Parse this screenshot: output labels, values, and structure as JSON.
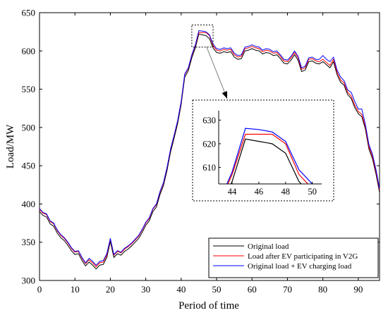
{
  "chart_data": {
    "type": "line",
    "title": "",
    "xlabel": "Period of time",
    "ylabel": "Load/MW",
    "xlim": [
      0,
      96
    ],
    "ylim": [
      300,
      650
    ],
    "xticks": [
      0,
      10,
      20,
      30,
      40,
      50,
      60,
      70,
      80,
      90
    ],
    "yticks": [
      300,
      350,
      400,
      450,
      500,
      550,
      600,
      650
    ],
    "legend": "bottom-right",
    "grid": false,
    "series": [
      {
        "name": "Original load",
        "color": "#000000",
        "values": [
          [
            0,
            390
          ],
          [
            1,
            385
          ],
          [
            2,
            383
          ],
          [
            3,
            374
          ],
          [
            4,
            371
          ],
          [
            5,
            362
          ],
          [
            6,
            356
          ],
          [
            7,
            352
          ],
          [
            8,
            346
          ],
          [
            9,
            339
          ],
          [
            10,
            334
          ],
          [
            11,
            335
          ],
          [
            12,
            326
          ],
          [
            13,
            319
          ],
          [
            14,
            324
          ],
          [
            15,
            320
          ],
          [
            16,
            315
          ],
          [
            17,
            320
          ],
          [
            18,
            321
          ],
          [
            19,
            330
          ],
          [
            20,
            351
          ],
          [
            21,
            330
          ],
          [
            22,
            335
          ],
          [
            23,
            333
          ],
          [
            24,
            338
          ],
          [
            25,
            341
          ],
          [
            26,
            345
          ],
          [
            27,
            350
          ],
          [
            28,
            355
          ],
          [
            29,
            363
          ],
          [
            30,
            372
          ],
          [
            31,
            378
          ],
          [
            32,
            390
          ],
          [
            33,
            396
          ],
          [
            34,
            412
          ],
          [
            35,
            424
          ],
          [
            36,
            444
          ],
          [
            37,
            468
          ],
          [
            38,
            486
          ],
          [
            39,
            505
          ],
          [
            40,
            530
          ],
          [
            41,
            566
          ],
          [
            42,
            574
          ],
          [
            43,
            591
          ],
          [
            44,
            604
          ],
          [
            45,
            622
          ],
          [
            46,
            621
          ],
          [
            47,
            620
          ],
          [
            48,
            616
          ],
          [
            49,
            604
          ],
          [
            50,
            598
          ],
          [
            51,
            597
          ],
          [
            52,
            599
          ],
          [
            53,
            598
          ],
          [
            54,
            599
          ],
          [
            55,
            592
          ],
          [
            56,
            589
          ],
          [
            57,
            590
          ],
          [
            58,
            600
          ],
          [
            59,
            601
          ],
          [
            60,
            603
          ],
          [
            61,
            601
          ],
          [
            62,
            600
          ],
          [
            63,
            596
          ],
          [
            64,
            598
          ],
          [
            65,
            597
          ],
          [
            66,
            594
          ],
          [
            67,
            595
          ],
          [
            68,
            590
          ],
          [
            69,
            584
          ],
          [
            70,
            583
          ],
          [
            71,
            588
          ],
          [
            72,
            595
          ],
          [
            73,
            588
          ],
          [
            74,
            573
          ],
          [
            75,
            575
          ],
          [
            76,
            586
          ],
          [
            77,
            587
          ],
          [
            78,
            584
          ],
          [
            79,
            583
          ],
          [
            80,
            586
          ],
          [
            81,
            582
          ],
          [
            82,
            578
          ],
          [
            83,
            586
          ],
          [
            84,
            569
          ],
          [
            85,
            559
          ],
          [
            86,
            555
          ],
          [
            87,
            543
          ],
          [
            88,
            538
          ],
          [
            89,
            526
          ],
          [
            90,
            518
          ],
          [
            91,
            514
          ],
          [
            92,
            498
          ],
          [
            93,
            472
          ],
          [
            94,
            459
          ],
          [
            95,
            439
          ],
          [
            96,
            415
          ]
        ]
      },
      {
        "name": "Load after EV participating in V2G",
        "color": "#ff0000",
        "values": [
          [
            0,
            393
          ],
          [
            1,
            388
          ],
          [
            2,
            386
          ],
          [
            3,
            377
          ],
          [
            4,
            374
          ],
          [
            5,
            365
          ],
          [
            6,
            359
          ],
          [
            7,
            355
          ],
          [
            8,
            349
          ],
          [
            9,
            342
          ],
          [
            10,
            337
          ],
          [
            11,
            338
          ],
          [
            12,
            329
          ],
          [
            13,
            322
          ],
          [
            14,
            327
          ],
          [
            15,
            323
          ],
          [
            16,
            318
          ],
          [
            17,
            323
          ],
          [
            18,
            324
          ],
          [
            19,
            333
          ],
          [
            20,
            354
          ],
          [
            21,
            333
          ],
          [
            22,
            338
          ],
          [
            23,
            336
          ],
          [
            24,
            341
          ],
          [
            25,
            344
          ],
          [
            26,
            348
          ],
          [
            27,
            353
          ],
          [
            28,
            358
          ],
          [
            29,
            366
          ],
          [
            30,
            375
          ],
          [
            31,
            381
          ],
          [
            32,
            393
          ],
          [
            33,
            399
          ],
          [
            34,
            415
          ],
          [
            35,
            427
          ],
          [
            36,
            447
          ],
          [
            37,
            471
          ],
          [
            38,
            489
          ],
          [
            39,
            508
          ],
          [
            40,
            533
          ],
          [
            41,
            569
          ],
          [
            42,
            577
          ],
          [
            43,
            594
          ],
          [
            44,
            607
          ],
          [
            45,
            624
          ],
          [
            46,
            624
          ],
          [
            47,
            624
          ],
          [
            48,
            620
          ],
          [
            49,
            607
          ],
          [
            50,
            601
          ],
          [
            51,
            600
          ],
          [
            52,
            602
          ],
          [
            53,
            601
          ],
          [
            54,
            602
          ],
          [
            55,
            595
          ],
          [
            56,
            592
          ],
          [
            57,
            593
          ],
          [
            58,
            603
          ],
          [
            59,
            604
          ],
          [
            60,
            606
          ],
          [
            61,
            604
          ],
          [
            62,
            603
          ],
          [
            63,
            599
          ],
          [
            64,
            601
          ],
          [
            65,
            600
          ],
          [
            66,
            597
          ],
          [
            67,
            598
          ],
          [
            68,
            593
          ],
          [
            69,
            587
          ],
          [
            70,
            586
          ],
          [
            71,
            591
          ],
          [
            72,
            598
          ],
          [
            73,
            591
          ],
          [
            74,
            576
          ],
          [
            75,
            578
          ],
          [
            76,
            589
          ],
          [
            77,
            590
          ],
          [
            78,
            587
          ],
          [
            79,
            586
          ],
          [
            80,
            589
          ],
          [
            81,
            585
          ],
          [
            82,
            581
          ],
          [
            83,
            589
          ],
          [
            84,
            572
          ],
          [
            85,
            562
          ],
          [
            86,
            558
          ],
          [
            87,
            546
          ],
          [
            88,
            541
          ],
          [
            89,
            529
          ],
          [
            90,
            521
          ],
          [
            91,
            517
          ],
          [
            92,
            501
          ],
          [
            93,
            475
          ],
          [
            94,
            462
          ],
          [
            95,
            442
          ],
          [
            96,
            418
          ]
        ]
      },
      {
        "name": "Original load + EV charging load",
        "color": "#0000ff",
        "values": [
          [
            0,
            394
          ],
          [
            1,
            389
          ],
          [
            2,
            387
          ],
          [
            3,
            378
          ],
          [
            4,
            375
          ],
          [
            5,
            366
          ],
          [
            6,
            360
          ],
          [
            7,
            356
          ],
          [
            8,
            350
          ],
          [
            9,
            343
          ],
          [
            10,
            338
          ],
          [
            11,
            339
          ],
          [
            12,
            330
          ],
          [
            13,
            323
          ],
          [
            14,
            329
          ],
          [
            15,
            325
          ],
          [
            16,
            320
          ],
          [
            17,
            325
          ],
          [
            18,
            326
          ],
          [
            19,
            335
          ],
          [
            20,
            355
          ],
          [
            21,
            334
          ],
          [
            22,
            339
          ],
          [
            23,
            337
          ],
          [
            24,
            342
          ],
          [
            25,
            345
          ],
          [
            26,
            349
          ],
          [
            27,
            354
          ],
          [
            28,
            359
          ],
          [
            29,
            367
          ],
          [
            30,
            376
          ],
          [
            31,
            382
          ],
          [
            32,
            394
          ],
          [
            33,
            400
          ],
          [
            34,
            416
          ],
          [
            35,
            428
          ],
          [
            36,
            448
          ],
          [
            37,
            472
          ],
          [
            38,
            490
          ],
          [
            39,
            509
          ],
          [
            40,
            534
          ],
          [
            41,
            570
          ],
          [
            42,
            578
          ],
          [
            43,
            595
          ],
          [
            44,
            608
          ],
          [
            45,
            626.5
          ],
          [
            46,
            626
          ],
          [
            47,
            625
          ],
          [
            48,
            621
          ],
          [
            49,
            609
          ],
          [
            50,
            603
          ],
          [
            51,
            602
          ],
          [
            52,
            604
          ],
          [
            53,
            603
          ],
          [
            54,
            604
          ],
          [
            55,
            597
          ],
          [
            56,
            594
          ],
          [
            57,
            595
          ],
          [
            58,
            605
          ],
          [
            59,
            606
          ],
          [
            60,
            608
          ],
          [
            61,
            606
          ],
          [
            62,
            605
          ],
          [
            63,
            601
          ],
          [
            64,
            603
          ],
          [
            65,
            602
          ],
          [
            66,
            599
          ],
          [
            67,
            600
          ],
          [
            68,
            595
          ],
          [
            69,
            589
          ],
          [
            70,
            588
          ],
          [
            71,
            593
          ],
          [
            72,
            600
          ],
          [
            73,
            593
          ],
          [
            74,
            578
          ],
          [
            75,
            580
          ],
          [
            76,
            591
          ],
          [
            77,
            592
          ],
          [
            78,
            589
          ],
          [
            79,
            589
          ],
          [
            80,
            594
          ],
          [
            81,
            589
          ],
          [
            82,
            586
          ],
          [
            83,
            592
          ],
          [
            84,
            575
          ],
          [
            85,
            566
          ],
          [
            86,
            561
          ],
          [
            87,
            549
          ],
          [
            88,
            546
          ],
          [
            89,
            534
          ],
          [
            90,
            524
          ],
          [
            91,
            524
          ],
          [
            92,
            504
          ],
          [
            93,
            478
          ],
          [
            94,
            465
          ],
          [
            95,
            445
          ],
          [
            96,
            420
          ]
        ]
      }
    ],
    "inset": {
      "xlim": [
        43,
        50.7
      ],
      "ylim": [
        603,
        634
      ],
      "xticks": [
        44,
        46,
        48,
        50
      ],
      "yticks": [
        610,
        620,
        630
      ],
      "zoom_x": [
        43,
        49
      ],
      "zoom_y": [
        605,
        634
      ]
    }
  }
}
